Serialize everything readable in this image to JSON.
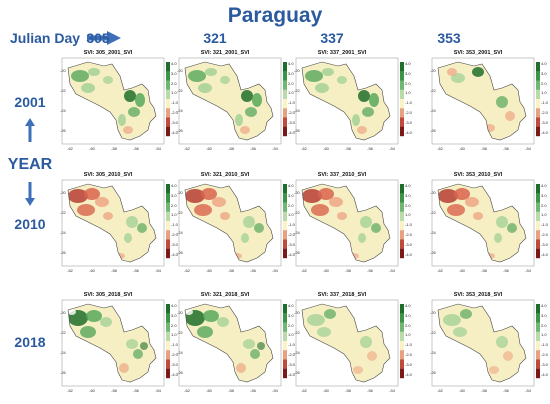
{
  "title": "Paraguay",
  "julian_day_label": "Julian Day",
  "julian_days": [
    "305",
    "321",
    "337",
    "353"
  ],
  "axis_name": "YEAR",
  "years": [
    "2001",
    "2010",
    "2018"
  ],
  "panels": [
    {
      "title": "SVI:  305_2001_SVI",
      "pattern": "green-east"
    },
    {
      "title": "SVI:  321_2001_SVI",
      "pattern": "green-east"
    },
    {
      "title": "SVI:  337_2001_SVI",
      "pattern": "green-east"
    },
    {
      "title": "SVI:  353_2001_SVI",
      "pattern": "green-mixed"
    },
    {
      "title": "SVI:  305_2010_SVI",
      "pattern": "red-west"
    },
    {
      "title": "SVI:  321_2010_SVI",
      "pattern": "red-west"
    },
    {
      "title": "SVI:  337_2010_SVI",
      "pattern": "red-west"
    },
    {
      "title": "SVI:  353_2010_SVI",
      "pattern": "red-west"
    },
    {
      "title": "SVI:  305_2018_SVI",
      "pattern": "green-west"
    },
    {
      "title": "SVI:  321_2018_SVI",
      "pattern": "green-west"
    },
    {
      "title": "SVI:  337_2018_SVI",
      "pattern": "green-light"
    },
    {
      "title": "SVI:  353_2018_SVI",
      "pattern": "green-light"
    }
  ],
  "colorbar": {
    "ticks": [
      "4.0",
      "3.0",
      "2.0",
      "1.0",
      "-1.0",
      "-2.0",
      "-3.0",
      "-4.0"
    ],
    "colors": [
      "#1f6e2c",
      "#3c9446",
      "#6fb873",
      "#b7dca9",
      "#fbf3c6",
      "#e6a27f",
      "#c04a3c",
      "#7a1a18"
    ]
  },
  "x_ticks": [
    "-62",
    "-60",
    "-58",
    "-56",
    "-54"
  ],
  "y_ticks": [
    "-20",
    "-22",
    "-24",
    "-26"
  ],
  "colors": {
    "label_blue": "#2b5a9e",
    "base_yellow": "#f6efc4",
    "green_dark": "#1f6e2c",
    "green_mid": "#58a85c",
    "green_light": "#a9d39a",
    "red_dark": "#b3332b",
    "red_mid": "#d9644d",
    "red_light": "#eea686"
  }
}
